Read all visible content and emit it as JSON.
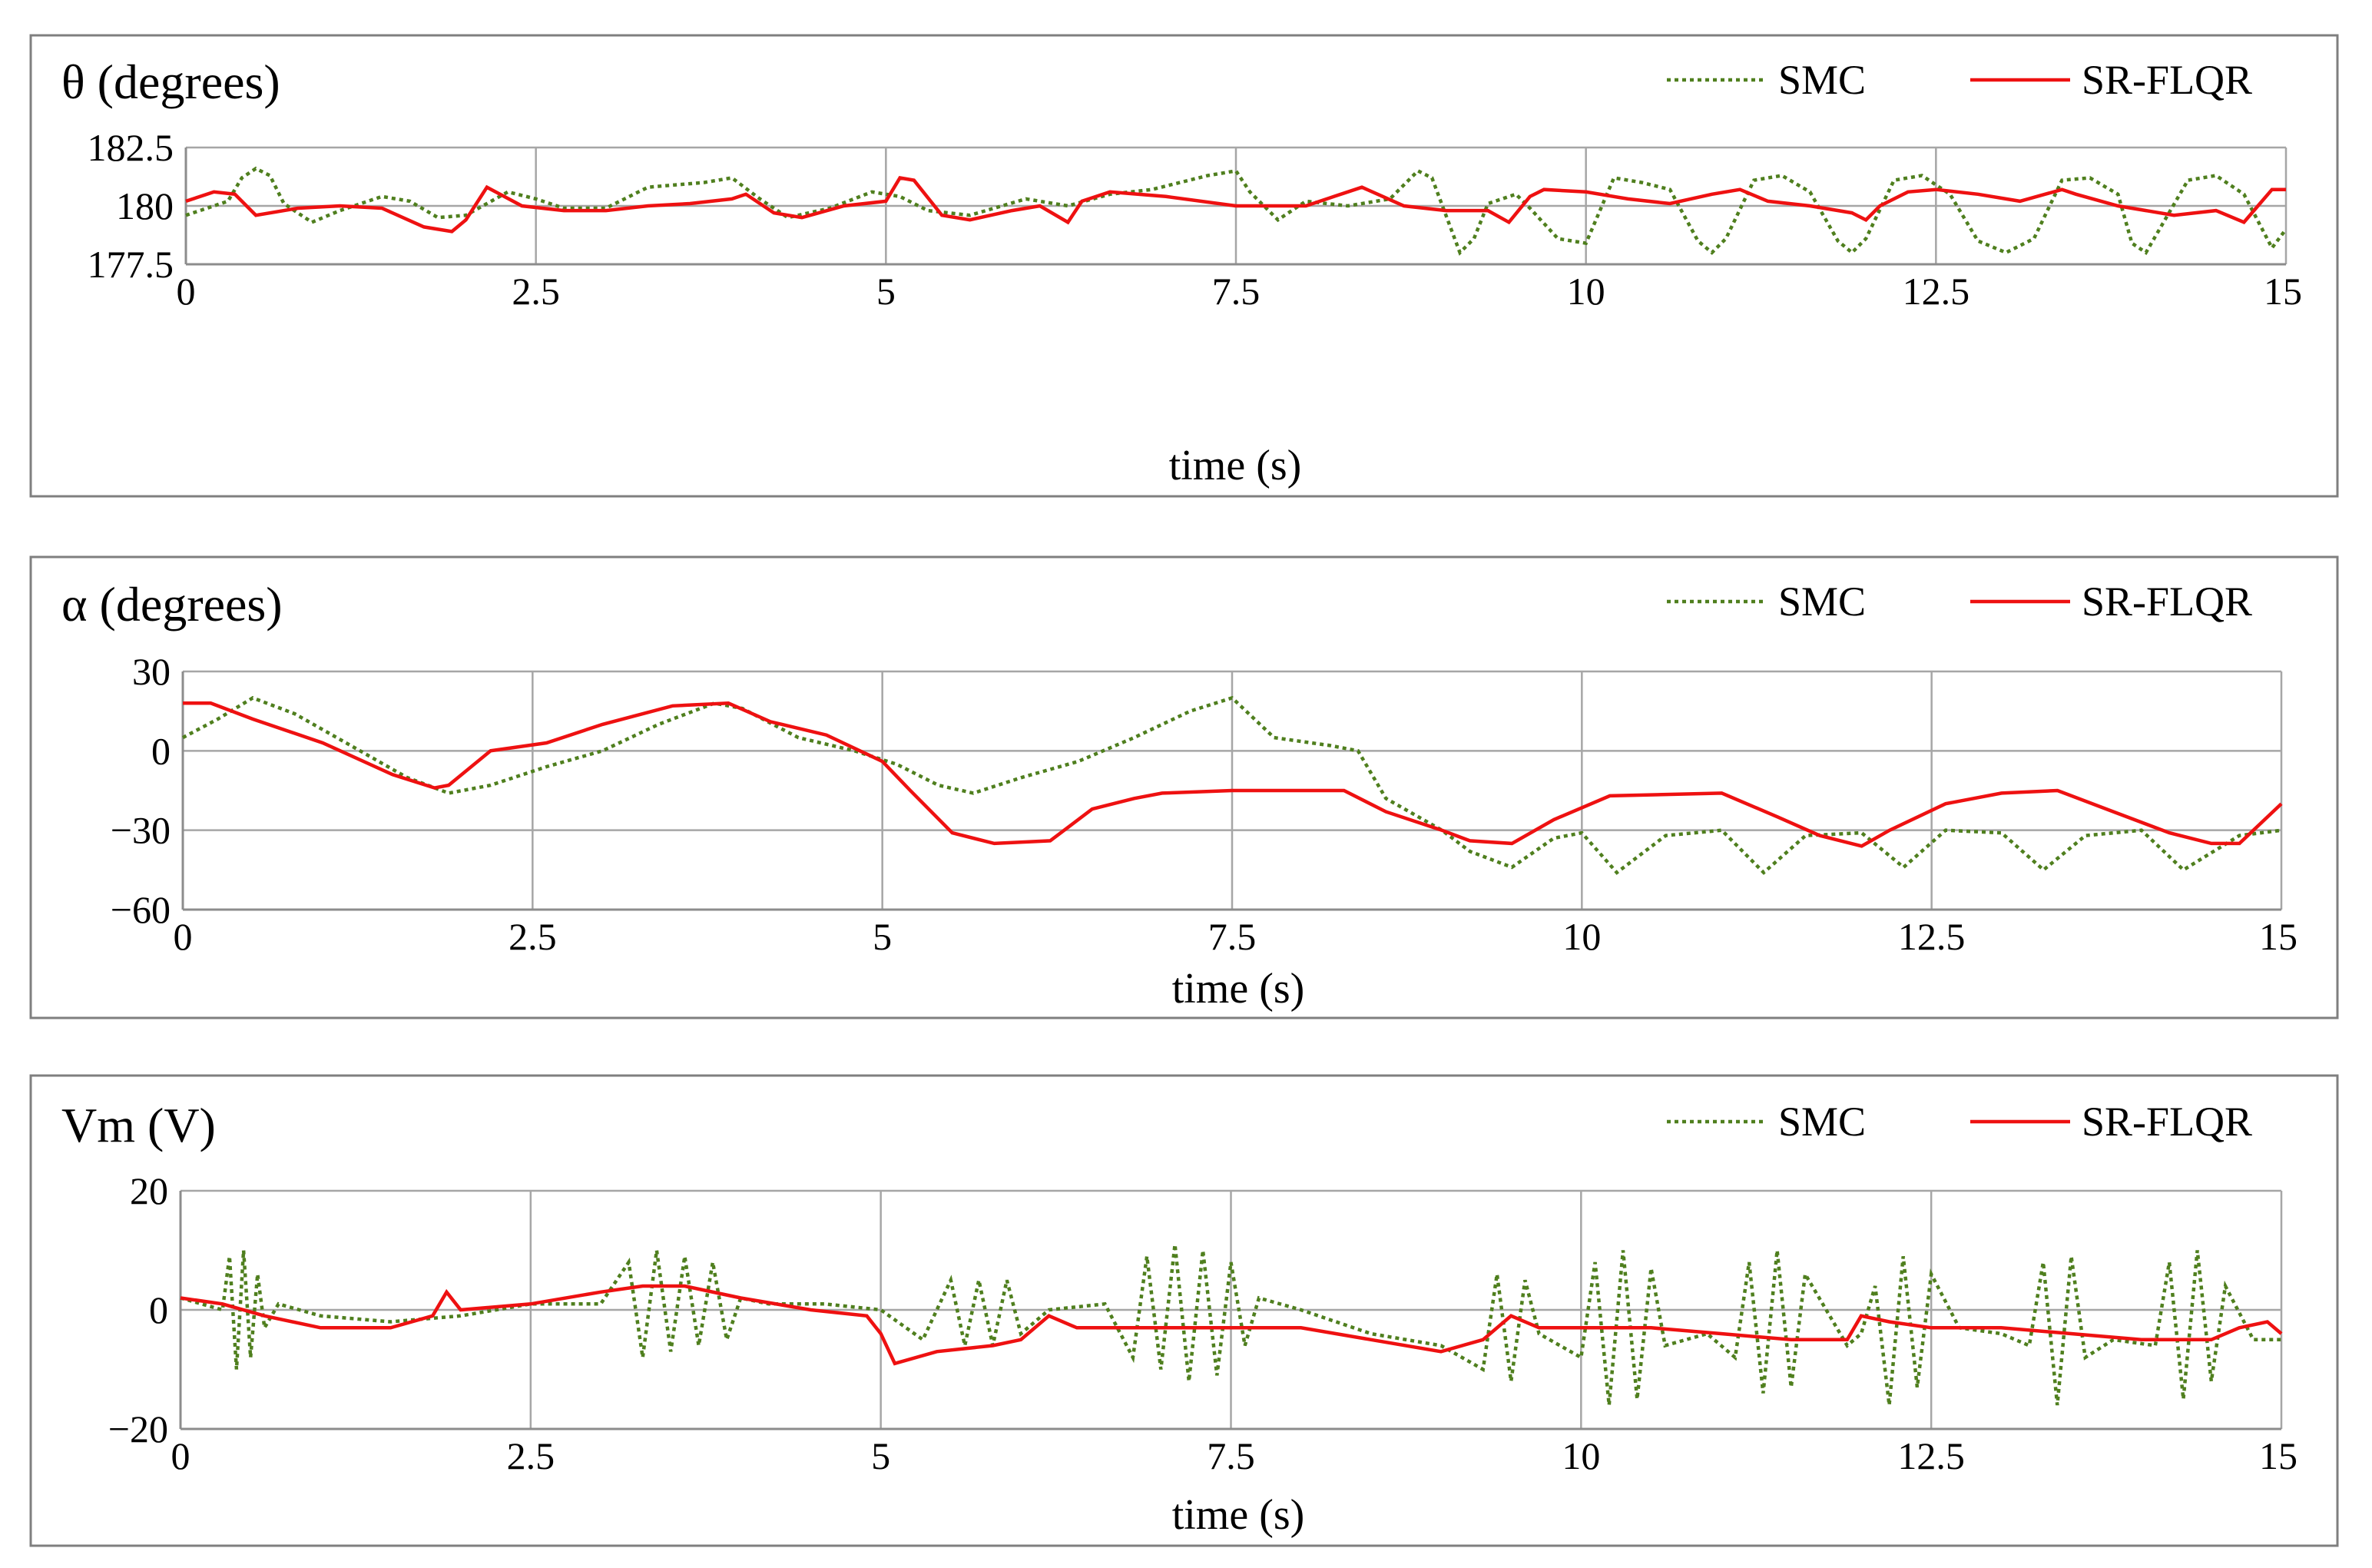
{
  "colors": {
    "smc": "#4f7f1e",
    "flqr": "#ee1111",
    "grid": "#a6a6a6",
    "frame": "#7f7f7f"
  },
  "chart_data": [
    {
      "type": "line",
      "title": "θ (degrees)",
      "xlabel": "time (s)",
      "ylabel": "θ (degrees)",
      "xlim": [
        0,
        15
      ],
      "ylim": [
        177.5,
        182.5
      ],
      "xticks": [
        0,
        2.5,
        5,
        7.5,
        10,
        12.5,
        15
      ],
      "xtick_labels": [
        "0",
        "2.5",
        "5",
        "7.5",
        "10",
        "12.5",
        "15"
      ],
      "yticks": [
        177.5,
        180,
        182.5
      ],
      "ytick_labels": [
        "177.5",
        "180",
        "182.5"
      ],
      "legend": [
        "SMC",
        "SR-FLQR"
      ],
      "legend_position": "top-right",
      "grid": true,
      "series": [
        {
          "name": "SMC",
          "x": [
            0,
            0.3,
            0.4,
            0.5,
            0.6,
            0.7,
            0.9,
            1.1,
            1.4,
            1.6,
            1.8,
            2.0,
            2.3,
            2.5,
            2.7,
            3.0,
            3.3,
            3.5,
            3.7,
            3.9,
            4.1,
            4.3,
            4.6,
            4.9,
            5.1,
            5.3,
            5.6,
            6.0,
            6.3,
            6.6,
            6.9,
            7.1,
            7.3,
            7.5,
            7.6,
            7.8,
            8.0,
            8.3,
            8.6,
            8.8,
            8.9,
            9.0,
            9.1,
            9.2,
            9.3,
            9.5,
            9.6,
            9.8,
            10.0,
            10.2,
            10.4,
            10.6,
            10.8,
            10.9,
            11.0,
            11.2,
            11.4,
            11.6,
            11.8,
            11.9,
            12.0,
            12.2,
            12.4,
            12.6,
            12.8,
            13.0,
            13.2,
            13.4,
            13.6,
            13.8,
            13.9,
            14.0,
            14.3,
            14.5,
            14.7,
            14.9,
            15.0
          ],
          "y": [
            179.6,
            180.2,
            181.2,
            181.6,
            181.3,
            180.1,
            179.3,
            179.8,
            180.4,
            180.2,
            179.5,
            179.6,
            180.6,
            180.3,
            179.9,
            179.9,
            180.8,
            180.9,
            181.0,
            181.2,
            180.3,
            179.5,
            179.9,
            180.6,
            180.4,
            179.8,
            179.6,
            180.3,
            180.0,
            180.5,
            180.7,
            181.0,
            181.3,
            181.5,
            180.6,
            179.4,
            180.2,
            180.0,
            180.3,
            181.5,
            181.2,
            179.6,
            178.0,
            178.6,
            180.1,
            180.5,
            179.9,
            178.6,
            178.4,
            181.2,
            181.0,
            180.7,
            178.5,
            178.0,
            178.6,
            181.1,
            181.3,
            180.6,
            178.5,
            178.0,
            178.6,
            181.1,
            181.3,
            180.5,
            178.5,
            178.0,
            178.6,
            181.1,
            181.2,
            180.5,
            178.4,
            178.0,
            181.1,
            181.3,
            180.5,
            178.2,
            179.0
          ]
        },
        {
          "name": "SR-FLQR",
          "x": [
            0,
            0.2,
            0.35,
            0.5,
            0.8,
            1.1,
            1.4,
            1.7,
            1.9,
            2.0,
            2.15,
            2.4,
            2.7,
            3.0,
            3.3,
            3.6,
            3.9,
            4.0,
            4.2,
            4.4,
            4.7,
            5.0,
            5.1,
            5.2,
            5.4,
            5.6,
            5.9,
            6.1,
            6.3,
            6.4,
            6.6,
            7.0,
            7.5,
            8.0,
            8.2,
            8.4,
            8.7,
            9.0,
            9.3,
            9.45,
            9.6,
            9.7,
            10.0,
            10.3,
            10.6,
            10.9,
            11.1,
            11.3,
            11.6,
            11.9,
            12.0,
            12.1,
            12.3,
            12.5,
            12.8,
            13.1,
            13.4,
            13.5,
            13.8,
            14.2,
            14.5,
            14.7,
            14.8,
            14.9,
            15.0
          ],
          "y": [
            180.2,
            180.6,
            180.5,
            179.6,
            179.9,
            180.0,
            179.9,
            179.1,
            178.9,
            179.4,
            180.8,
            180.0,
            179.8,
            179.8,
            180.0,
            180.1,
            180.3,
            180.5,
            179.7,
            179.5,
            180.0,
            180.2,
            181.2,
            181.1,
            179.6,
            179.4,
            179.8,
            180.0,
            179.3,
            180.2,
            180.6,
            180.4,
            180.0,
            180.0,
            180.4,
            180.8,
            180.0,
            179.8,
            179.8,
            179.3,
            180.4,
            180.7,
            180.6,
            180.3,
            180.1,
            180.5,
            180.7,
            180.2,
            180.0,
            179.7,
            179.4,
            180.0,
            180.6,
            180.7,
            180.5,
            180.2,
            180.7,
            180.5,
            180.0,
            179.6,
            179.8,
            179.3,
            180.0,
            180.7,
            180.7
          ]
        }
      ]
    },
    {
      "type": "line",
      "title": "α (degrees)",
      "xlabel": "time (s)",
      "ylabel": "α (degrees)",
      "xlim": [
        0,
        15
      ],
      "ylim": [
        -60,
        30
      ],
      "xticks": [
        0,
        2.5,
        5,
        7.5,
        10,
        12.5,
        15
      ],
      "xtick_labels": [
        "0",
        "2.5",
        "5",
        "7.5",
        "10",
        "12.5",
        "15"
      ],
      "yticks": [
        -60,
        -30,
        0,
        30
      ],
      "ytick_labels": [
        "−60",
        "−30",
        "0",
        "30"
      ],
      "legend": [
        "SMC",
        "SR-FLQR"
      ],
      "legend_position": "top-right",
      "grid": true,
      "series": [
        {
          "name": "SMC",
          "x": [
            0,
            0.25,
            0.5,
            0.8,
            1.2,
            1.6,
            1.9,
            2.2,
            2.6,
            3.0,
            3.4,
            3.8,
            4.0,
            4.4,
            4.8,
            5.1,
            5.4,
            5.65,
            6.0,
            6.4,
            6.8,
            7.2,
            7.5,
            7.8,
            8.2,
            8.4,
            8.6,
            9.0,
            9.2,
            9.5,
            9.8,
            10.0,
            10.25,
            10.6,
            11.0,
            11.3,
            11.6,
            12.0,
            12.3,
            12.6,
            13.0,
            13.3,
            13.6,
            14.0,
            14.3,
            14.7,
            15.0
          ],
          "y": [
            5,
            12,
            20,
            14,
            2,
            -10,
            -16,
            -13,
            -6,
            0,
            10,
            18,
            16,
            5,
            0,
            -5,
            -13,
            -16,
            -10,
            -4,
            5,
            15,
            20,
            5,
            2,
            0,
            -18,
            -30,
            -38,
            -44,
            -33,
            -31,
            -46,
            -32,
            -30,
            -46,
            -32,
            -31,
            -44,
            -30,
            -31,
            -45,
            -32,
            -30,
            -45,
            -32,
            -30
          ]
        },
        {
          "name": "SR-FLQR",
          "x": [
            0,
            0.2,
            0.5,
            1.0,
            1.5,
            1.8,
            1.9,
            2.2,
            2.6,
            3.0,
            3.5,
            3.9,
            4.2,
            4.6,
            5.0,
            5.2,
            5.5,
            5.8,
            6.2,
            6.5,
            6.8,
            7.0,
            7.5,
            8.0,
            8.3,
            8.6,
            9.0,
            9.2,
            9.5,
            9.8,
            10.2,
            11.0,
            11.4,
            11.7,
            12.0,
            12.2,
            12.6,
            13.0,
            13.4,
            13.8,
            14.2,
            14.5,
            14.7,
            15.0
          ],
          "y": [
            18,
            18,
            12,
            3,
            -9,
            -14,
            -13,
            0,
            3,
            10,
            17,
            18,
            11,
            6,
            -4,
            -15,
            -31,
            -35,
            -34,
            -22,
            -18,
            -16,
            -15,
            -15,
            -15,
            -23,
            -30,
            -34,
            -35,
            -26,
            -17,
            -16,
            -25,
            -32,
            -36,
            -30,
            -20,
            -16,
            -15,
            -23,
            -31,
            -35,
            -35,
            -20
          ]
        }
      ]
    },
    {
      "type": "line",
      "title": "Vm (V)",
      "xlabel": "time (s)",
      "ylabel": "Vm (V)",
      "xlim": [
        0,
        15
      ],
      "ylim": [
        -20,
        20
      ],
      "xticks": [
        0,
        2.5,
        5,
        7.5,
        10,
        12.5,
        15
      ],
      "xtick_labels": [
        "0",
        "2.5",
        "5",
        "7.5",
        "10",
        "12.5",
        "15"
      ],
      "yticks": [
        -20,
        0,
        20
      ],
      "ytick_labels": [
        "−20",
        "0",
        "20"
      ],
      "legend": [
        "SMC",
        "SR-FLQR"
      ],
      "legend_position": "top-right",
      "grid": true,
      "series": [
        {
          "name": "SMC",
          "x": [
            0,
            0.3,
            0.35,
            0.4,
            0.45,
            0.5,
            0.55,
            0.6,
            0.7,
            1.0,
            1.5,
            2.0,
            2.5,
            3.0,
            3.2,
            3.3,
            3.4,
            3.5,
            3.6,
            3.7,
            3.8,
            3.9,
            4.0,
            4.2,
            4.6,
            5.0,
            5.3,
            5.5,
            5.6,
            5.7,
            5.8,
            5.9,
            6.0,
            6.2,
            6.6,
            6.8,
            6.9,
            7.0,
            7.1,
            7.2,
            7.3,
            7.4,
            7.5,
            7.6,
            7.7,
            8.0,
            8.5,
            9.0,
            9.3,
            9.4,
            9.5,
            9.6,
            9.7,
            10.0,
            10.1,
            10.2,
            10.3,
            10.4,
            10.5,
            10.6,
            10.9,
            11.1,
            11.2,
            11.3,
            11.4,
            11.5,
            11.6,
            11.9,
            12.0,
            12.1,
            12.2,
            12.3,
            12.4,
            12.5,
            12.7,
            13.0,
            13.2,
            13.3,
            13.4,
            13.5,
            13.6,
            13.8,
            14.1,
            14.2,
            14.3,
            14.4,
            14.5,
            14.6,
            14.8,
            15.0
          ],
          "y": [
            2,
            0,
            9,
            -10,
            10,
            -8,
            6,
            -3,
            1,
            -1,
            -2,
            -1,
            1,
            1,
            8,
            -8,
            10,
            -7,
            9,
            -6,
            8,
            -5,
            2,
            1,
            1,
            0,
            -5,
            5,
            -6,
            5,
            -6,
            5,
            -4,
            0,
            1,
            -8,
            9,
            -10,
            11,
            -12,
            10,
            -11,
            8,
            -6,
            2,
            0,
            -4,
            -6,
            -10,
            6,
            -12,
            5,
            -4,
            -8,
            8,
            -16,
            10,
            -15,
            7,
            -6,
            -4,
            -8,
            8,
            -14,
            10,
            -13,
            6,
            -6,
            -4,
            4,
            -16,
            9,
            -13,
            6,
            -3,
            -4,
            -6,
            8,
            -16,
            9,
            -8,
            -5,
            -6,
            8,
            -15,
            10,
            -12,
            4,
            -5,
            -5
          ]
        },
        {
          "name": "SR-FLQR",
          "x": [
            0,
            0.3,
            0.6,
            1.0,
            1.5,
            1.8,
            1.9,
            2.0,
            2.5,
            3.0,
            3.3,
            3.6,
            4.0,
            4.5,
            4.9,
            5.0,
            5.1,
            5.4,
            5.8,
            6.0,
            6.2,
            6.4,
            7.0,
            7.5,
            8.0,
            8.5,
            9.0,
            9.3,
            9.5,
            9.7,
            10.0,
            10.5,
            11.0,
            11.5,
            11.9,
            12.0,
            12.2,
            12.5,
            13.0,
            13.5,
            14.0,
            14.5,
            14.7,
            14.9,
            15.0
          ],
          "y": [
            2,
            1,
            -1,
            -3,
            -3,
            -1,
            3,
            0,
            1,
            3,
            4,
            4,
            2,
            0,
            -1,
            -4,
            -9,
            -7,
            -6,
            -5,
            -1,
            -3,
            -3,
            -3,
            -3,
            -5,
            -7,
            -5,
            -1,
            -3,
            -3,
            -3,
            -4,
            -5,
            -5,
            -1,
            -2,
            -3,
            -3,
            -4,
            -5,
            -5,
            -3,
            -2,
            -4
          ]
        }
      ]
    }
  ]
}
